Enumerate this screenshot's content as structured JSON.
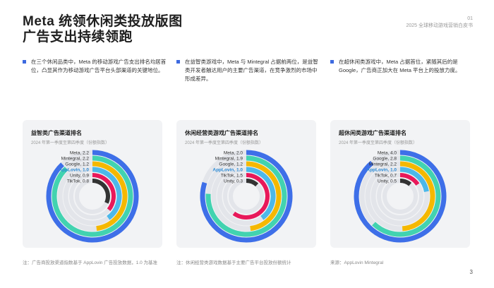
{
  "header": {
    "title_line1": "Meta 统领休闲类投放版图",
    "title_line2": "广告支出持续领跑",
    "page_top": "01",
    "report_label": "2025 全球移动游戏营销白皮书"
  },
  "bullets": [
    "在三个休闲品类中，Meta 的移动游戏广告支出排名均居首位，凸显其作为移动游戏广告平台头部渠道的关键地位。",
    "在益智类游戏中，Meta 与 Mintegral 占据前两位，是益智类开发者触达用户的主要广告渠道，在竞争激烈的市场中形成差异。",
    "在超休闲类游戏中，Meta 占据首位，紧随其后的是 Google，广告商正加大在 Meta 平台上的投放力度。"
  ],
  "colors": {
    "accent": "#3d6ae0",
    "ring1": "#3e6fe8",
    "ring2": "#42d3b0",
    "ring3": "#f5b800",
    "ring4": "#4cb8ea",
    "ring5": "#e8185a",
    "ring6": "#333333",
    "highlight": "#2c8bd6"
  },
  "chart_data": [
    {
      "type": "radial-bar",
      "title": "益智类广告渠道排名",
      "subtitle": "2024 年第一季度至第四季度（份额指数）",
      "max": 2.5,
      "highlight": "AppLovin",
      "series": [
        {
          "name": "Meta",
          "value": 2.2
        },
        {
          "name": "Mintegral",
          "value": 2.2
        },
        {
          "name": "Google",
          "value": 1.2
        },
        {
          "name": "AppLovin",
          "value": 1.0
        },
        {
          "name": "Unity",
          "value": 0.9
        },
        {
          "name": "TikTok",
          "value": 0.8
        }
      ],
      "note": "注：广告商投放渠道指数基于 AppLovin 广告投放数据，1.0 为基准"
    },
    {
      "type": "radial-bar",
      "title": "休闲经营类游戏广告渠道排名",
      "subtitle": "2024 年第一季度至第四季度（份额指数）",
      "max": 2.5,
      "highlight": "AppLovin",
      "series": [
        {
          "name": "Meta",
          "value": 2.0
        },
        {
          "name": "Mintegral",
          "value": 1.9
        },
        {
          "name": "Google",
          "value": 1.2
        },
        {
          "name": "AppLovin",
          "value": 1.0
        },
        {
          "name": "TikTok",
          "value": 1.5
        },
        {
          "name": "Unity",
          "value": 0.3
        }
      ],
      "note": "注：休闲经营类游戏数据基于主要广告平台投放份额统计"
    },
    {
      "type": "radial-bar",
      "title": "超休闲类游戏广告渠道排名",
      "subtitle": "2024 年第一季度至第四季度（份额指数）",
      "max": 4.5,
      "highlight": "AppLovin",
      "series": [
        {
          "name": "Meta",
          "value": 4.0
        },
        {
          "name": "Google",
          "value": 2.8
        },
        {
          "name": "Mintegral",
          "value": 2.2
        },
        {
          "name": "AppLovin",
          "value": 1.0
        },
        {
          "name": "TikTok",
          "value": 0.7
        },
        {
          "name": "Unity",
          "value": 0.5
        }
      ],
      "note": "来源：AppLovin Mintegral"
    }
  ],
  "footer": {
    "page_number": "3"
  }
}
